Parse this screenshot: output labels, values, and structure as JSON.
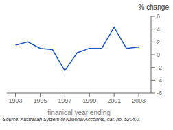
{
  "chart_data": {
    "type": "line",
    "title": "% change",
    "xlabel": "finanical year ending",
    "x": [
      1993,
      1994,
      1995,
      1996,
      1997,
      1998,
      1999,
      2000,
      2001,
      2002,
      2003
    ],
    "values": [
      1.5,
      2.0,
      1.0,
      0.8,
      -2.5,
      0.3,
      1.0,
      1.0,
      4.3,
      1.0,
      1.2
    ],
    "color": "#1a56c4",
    "xlim": [
      1992.3,
      2004.0
    ],
    "xticks": [
      1993,
      1995,
      1997,
      1999,
      2001,
      2003
    ],
    "ylim": [
      -6,
      6
    ],
    "yticks": [
      -6,
      -4,
      -2,
      0,
      2,
      4,
      6
    ],
    "grid": false,
    "annotations": [
      "Source: Australian System of National Accounts, cat. no. 5204.0."
    ]
  }
}
